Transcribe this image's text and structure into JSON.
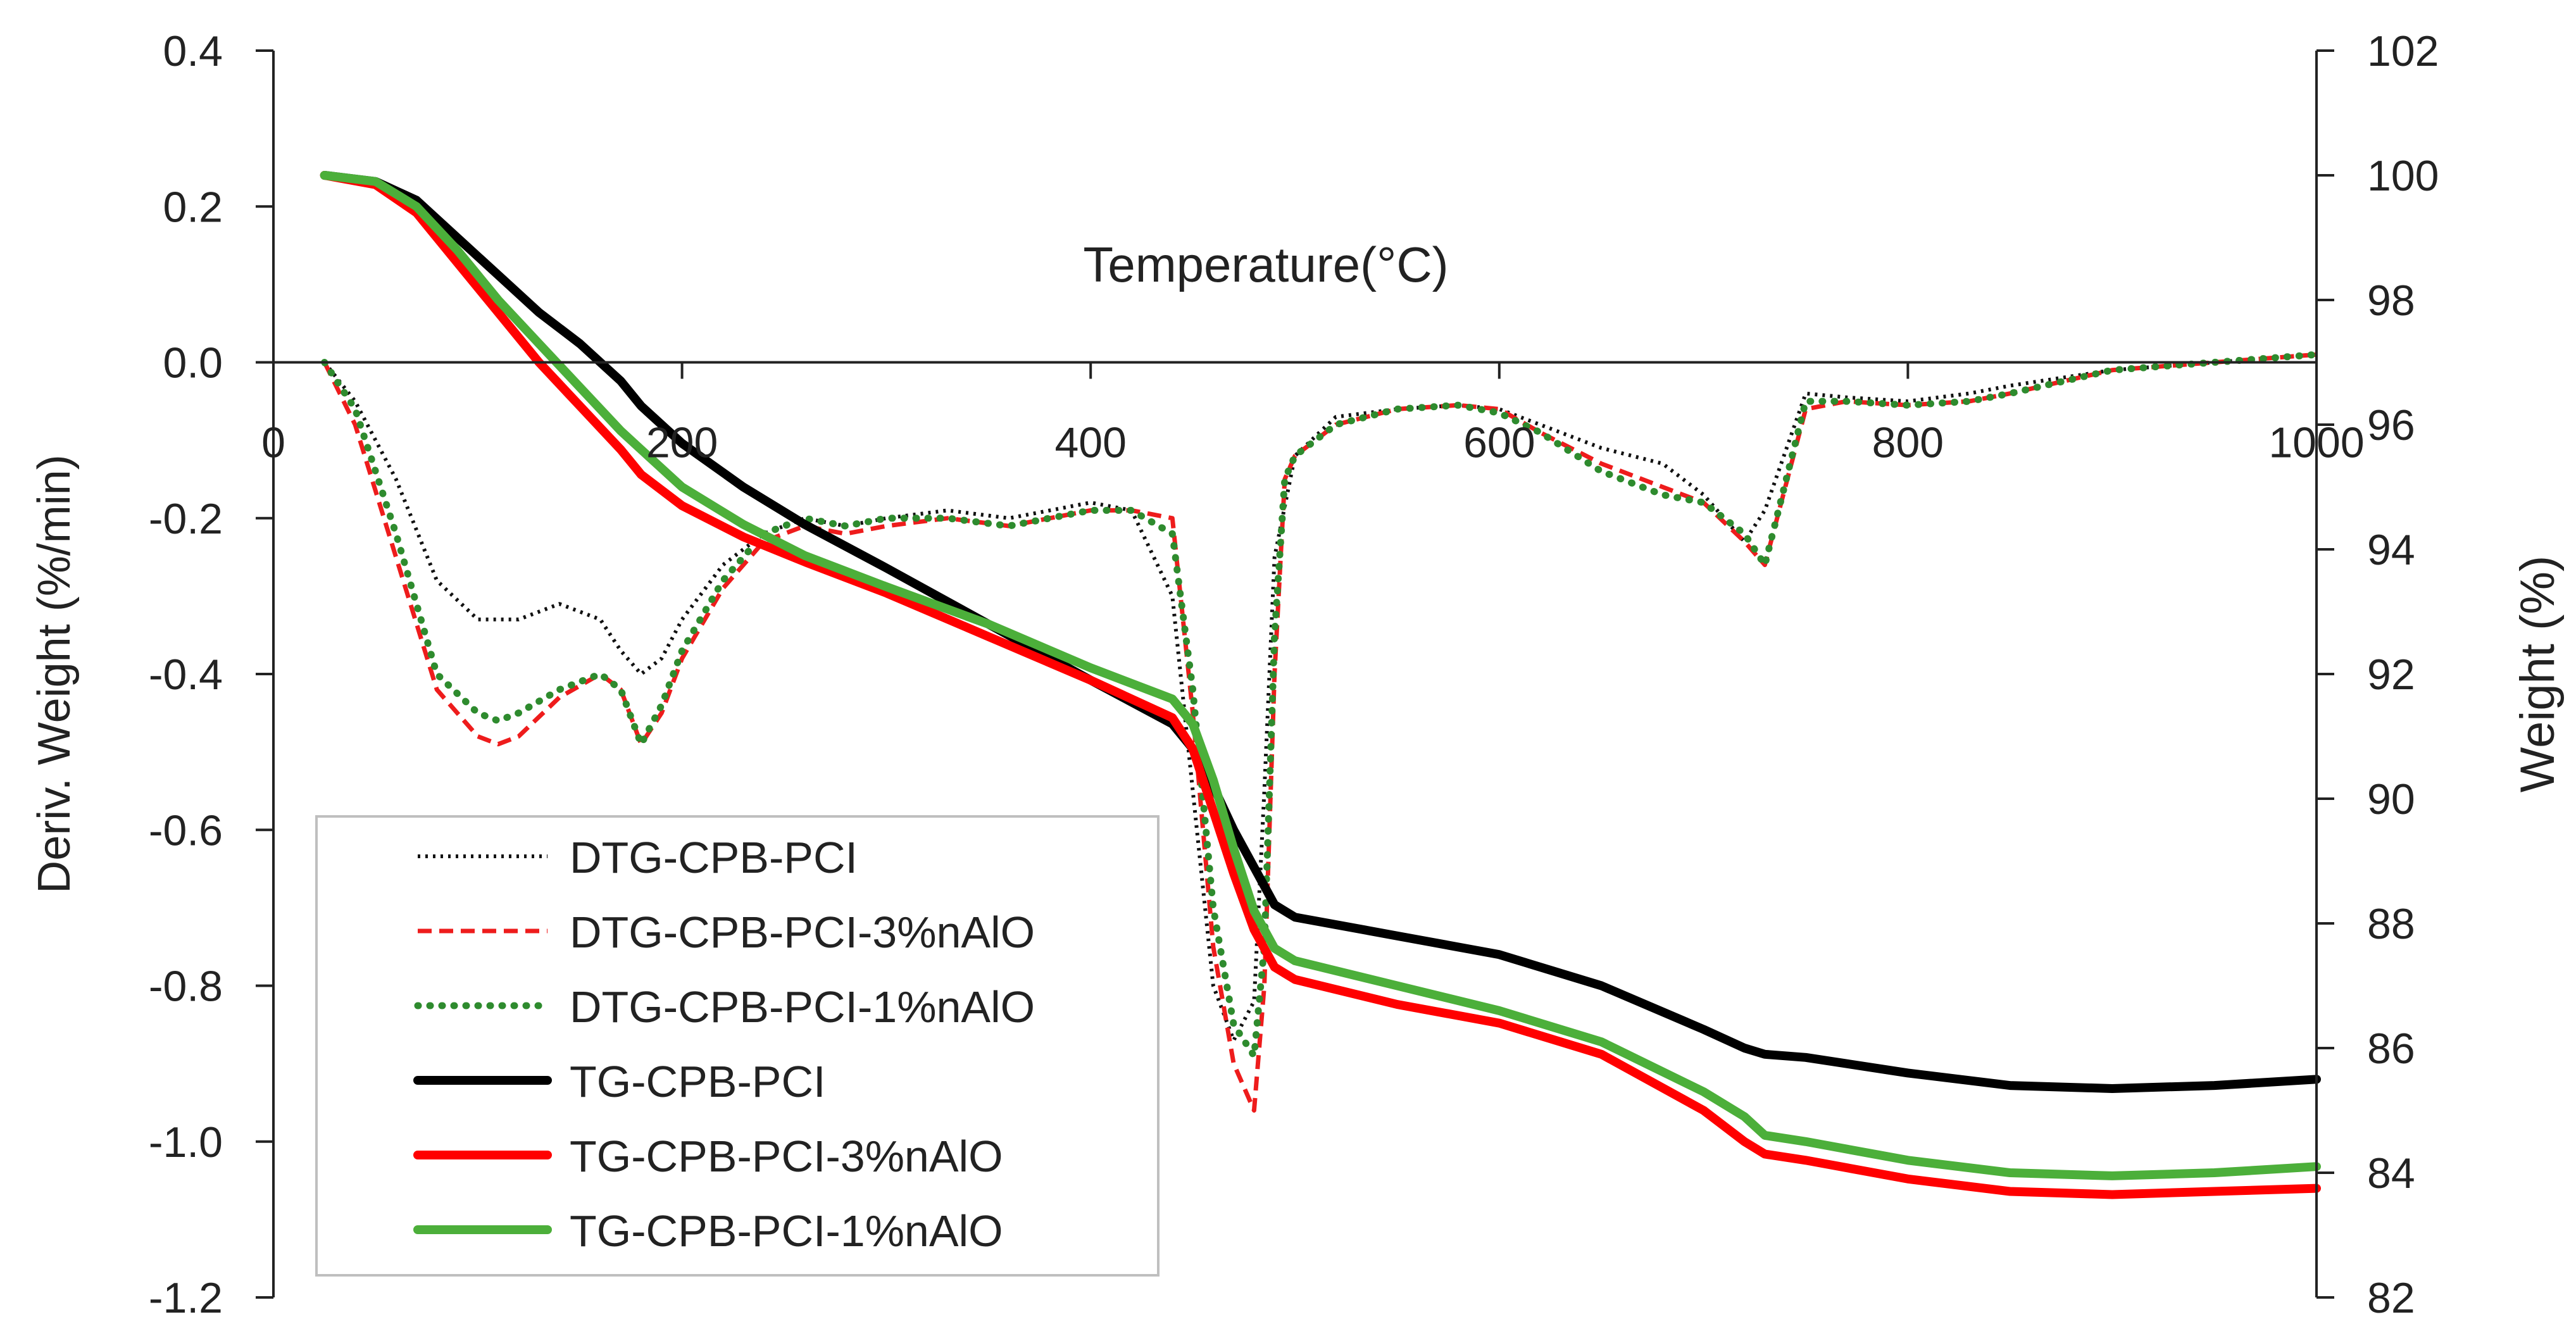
{
  "chart_data": {
    "type": "line",
    "title": "",
    "xlabel": "Temperature(°C)",
    "ylabel_left": "Deriv. Weight (%/min)",
    "ylabel_right": "Weight (%)",
    "xlim": [
      0,
      1000
    ],
    "ylim_left": [
      -1.2,
      0.4
    ],
    "ylim_right": [
      82,
      102
    ],
    "x_ticks": [
      "0",
      "200",
      "400",
      "600",
      "800",
      "1000"
    ],
    "y_left_ticks": [
      "0.4",
      "0.2",
      "0.0",
      "-0.2",
      "-0.4",
      "-0.6",
      "-0.8",
      "-1.0",
      "-1.2"
    ],
    "y_right_ticks": [
      "102",
      "100",
      "98",
      "96",
      "94",
      "92",
      "90",
      "88",
      "86",
      "84",
      "82"
    ],
    "grid": false,
    "legend_position": "bottom-left",
    "series": [
      {
        "name": "DTG-CPB-PCI",
        "axis": "left",
        "style": "dotted",
        "color": "#111111",
        "x": [
          25,
          40,
          60,
          80,
          100,
          120,
          140,
          160,
          170,
          180,
          190,
          200,
          220,
          240,
          260,
          280,
          300,
          330,
          360,
          400,
          420,
          440,
          450,
          460,
          470,
          480,
          485,
          490,
          500,
          520,
          550,
          580,
          600,
          620,
          650,
          680,
          700,
          720,
          730,
          750,
          770,
          800,
          830,
          850,
          900,
          950,
          1000
        ],
        "values": [
          0.0,
          -0.05,
          -0.15,
          -0.28,
          -0.33,
          -0.33,
          -0.31,
          -0.33,
          -0.37,
          -0.4,
          -0.38,
          -0.33,
          -0.26,
          -0.22,
          -0.2,
          -0.21,
          -0.2,
          -0.19,
          -0.2,
          -0.18,
          -0.19,
          -0.3,
          -0.55,
          -0.8,
          -0.87,
          -0.82,
          -0.55,
          -0.25,
          -0.12,
          -0.07,
          -0.06,
          -0.055,
          -0.06,
          -0.08,
          -0.11,
          -0.13,
          -0.17,
          -0.23,
          -0.19,
          -0.04,
          -0.045,
          -0.05,
          -0.04,
          -0.03,
          -0.01,
          0.0,
          0.01
        ]
      },
      {
        "name": "DTG-CPB-PCI-3%nAlO",
        "axis": "left",
        "style": "dashed",
        "color": "#ee1c1c",
        "x": [
          25,
          40,
          60,
          80,
          100,
          110,
          120,
          140,
          160,
          170,
          180,
          190,
          200,
          220,
          240,
          260,
          280,
          300,
          330,
          360,
          400,
          420,
          440,
          450,
          460,
          470,
          480,
          485,
          490,
          495,
          500,
          520,
          550,
          580,
          600,
          620,
          650,
          680,
          700,
          720,
          730,
          750,
          770,
          800,
          830,
          850,
          900,
          950,
          1000
        ],
        "values": [
          0.0,
          -0.08,
          -0.25,
          -0.42,
          -0.48,
          -0.49,
          -0.48,
          -0.43,
          -0.4,
          -0.42,
          -0.49,
          -0.45,
          -0.38,
          -0.29,
          -0.23,
          -0.21,
          -0.22,
          -0.21,
          -0.2,
          -0.21,
          -0.19,
          -0.19,
          -0.2,
          -0.45,
          -0.75,
          -0.9,
          -0.96,
          -0.8,
          -0.4,
          -0.15,
          -0.12,
          -0.08,
          -0.06,
          -0.055,
          -0.06,
          -0.09,
          -0.13,
          -0.16,
          -0.18,
          -0.23,
          -0.26,
          -0.06,
          -0.05,
          -0.055,
          -0.05,
          -0.04,
          -0.01,
          0.0,
          0.01
        ]
      },
      {
        "name": "DTG-CPB-PCI-1%nAlO",
        "axis": "left",
        "style": "dotted-thick",
        "color": "#2e8b2e",
        "x": [
          25,
          40,
          60,
          80,
          100,
          110,
          120,
          140,
          160,
          170,
          180,
          190,
          200,
          220,
          240,
          260,
          280,
          300,
          330,
          360,
          400,
          420,
          440,
          450,
          460,
          470,
          480,
          485,
          490,
          495,
          500,
          520,
          550,
          580,
          600,
          620,
          650,
          680,
          700,
          720,
          730,
          750,
          770,
          800,
          830,
          850,
          900,
          950,
          1000
        ],
        "values": [
          0.0,
          -0.06,
          -0.22,
          -0.4,
          -0.45,
          -0.46,
          -0.45,
          -0.42,
          -0.4,
          -0.42,
          -0.49,
          -0.44,
          -0.37,
          -0.28,
          -0.22,
          -0.2,
          -0.21,
          -0.2,
          -0.2,
          -0.21,
          -0.19,
          -0.19,
          -0.22,
          -0.42,
          -0.7,
          -0.85,
          -0.89,
          -0.75,
          -0.35,
          -0.15,
          -0.12,
          -0.08,
          -0.06,
          -0.055,
          -0.065,
          -0.09,
          -0.14,
          -0.17,
          -0.18,
          -0.22,
          -0.26,
          -0.05,
          -0.05,
          -0.055,
          -0.05,
          -0.04,
          -0.01,
          0.0,
          0.01
        ]
      },
      {
        "name": "TG-CPB-PCI",
        "axis": "right",
        "style": "solid",
        "color": "#000000",
        "x": [
          25,
          50,
          70,
          90,
          110,
          130,
          150,
          170,
          180,
          200,
          230,
          260,
          300,
          350,
          400,
          440,
          450,
          460,
          470,
          480,
          490,
          500,
          550,
          600,
          650,
          700,
          720,
          730,
          750,
          800,
          850,
          900,
          950,
          1000
        ],
        "values": [
          100.0,
          99.9,
          99.6,
          99.0,
          98.4,
          97.8,
          97.3,
          96.7,
          96.3,
          95.7,
          95.0,
          94.4,
          93.7,
          92.8,
          91.9,
          91.2,
          90.8,
          90.2,
          89.5,
          88.9,
          88.3,
          88.1,
          87.8,
          87.5,
          87.0,
          86.3,
          86.0,
          85.9,
          85.85,
          85.6,
          85.4,
          85.35,
          85.4,
          85.5
        ]
      },
      {
        "name": "TG-CPB-PCI-3%nAlO",
        "axis": "right",
        "style": "solid",
        "color": "#ff0000",
        "x": [
          25,
          50,
          70,
          90,
          110,
          130,
          150,
          170,
          180,
          200,
          230,
          260,
          300,
          350,
          400,
          440,
          450,
          460,
          470,
          480,
          490,
          500,
          550,
          600,
          650,
          700,
          720,
          730,
          750,
          800,
          850,
          900,
          950,
          1000
        ],
        "values": [
          100.0,
          99.85,
          99.4,
          98.6,
          97.8,
          97.0,
          96.3,
          95.6,
          95.2,
          94.7,
          94.2,
          93.8,
          93.3,
          92.6,
          91.9,
          91.3,
          90.8,
          89.8,
          88.8,
          87.9,
          87.3,
          87.1,
          86.7,
          86.4,
          85.9,
          85.0,
          84.5,
          84.3,
          84.2,
          83.9,
          83.7,
          83.65,
          83.7,
          83.75
        ]
      },
      {
        "name": "TG-CPB-PCI-1%nAlO",
        "axis": "right",
        "style": "solid",
        "color": "#4caf3a",
        "x": [
          25,
          50,
          70,
          90,
          110,
          130,
          150,
          170,
          180,
          200,
          230,
          260,
          300,
          350,
          400,
          440,
          450,
          460,
          470,
          480,
          490,
          500,
          550,
          600,
          650,
          700,
          720,
          730,
          750,
          800,
          850,
          900,
          950,
          1000
        ],
        "values": [
          100.0,
          99.9,
          99.5,
          98.8,
          98.0,
          97.3,
          96.6,
          95.9,
          95.6,
          95.0,
          94.4,
          93.9,
          93.4,
          92.8,
          92.1,
          91.6,
          91.2,
          90.3,
          89.2,
          88.2,
          87.6,
          87.4,
          87.0,
          86.6,
          86.1,
          85.3,
          84.9,
          84.6,
          84.5,
          84.2,
          84.0,
          83.95,
          84.0,
          84.1
        ]
      }
    ]
  }
}
